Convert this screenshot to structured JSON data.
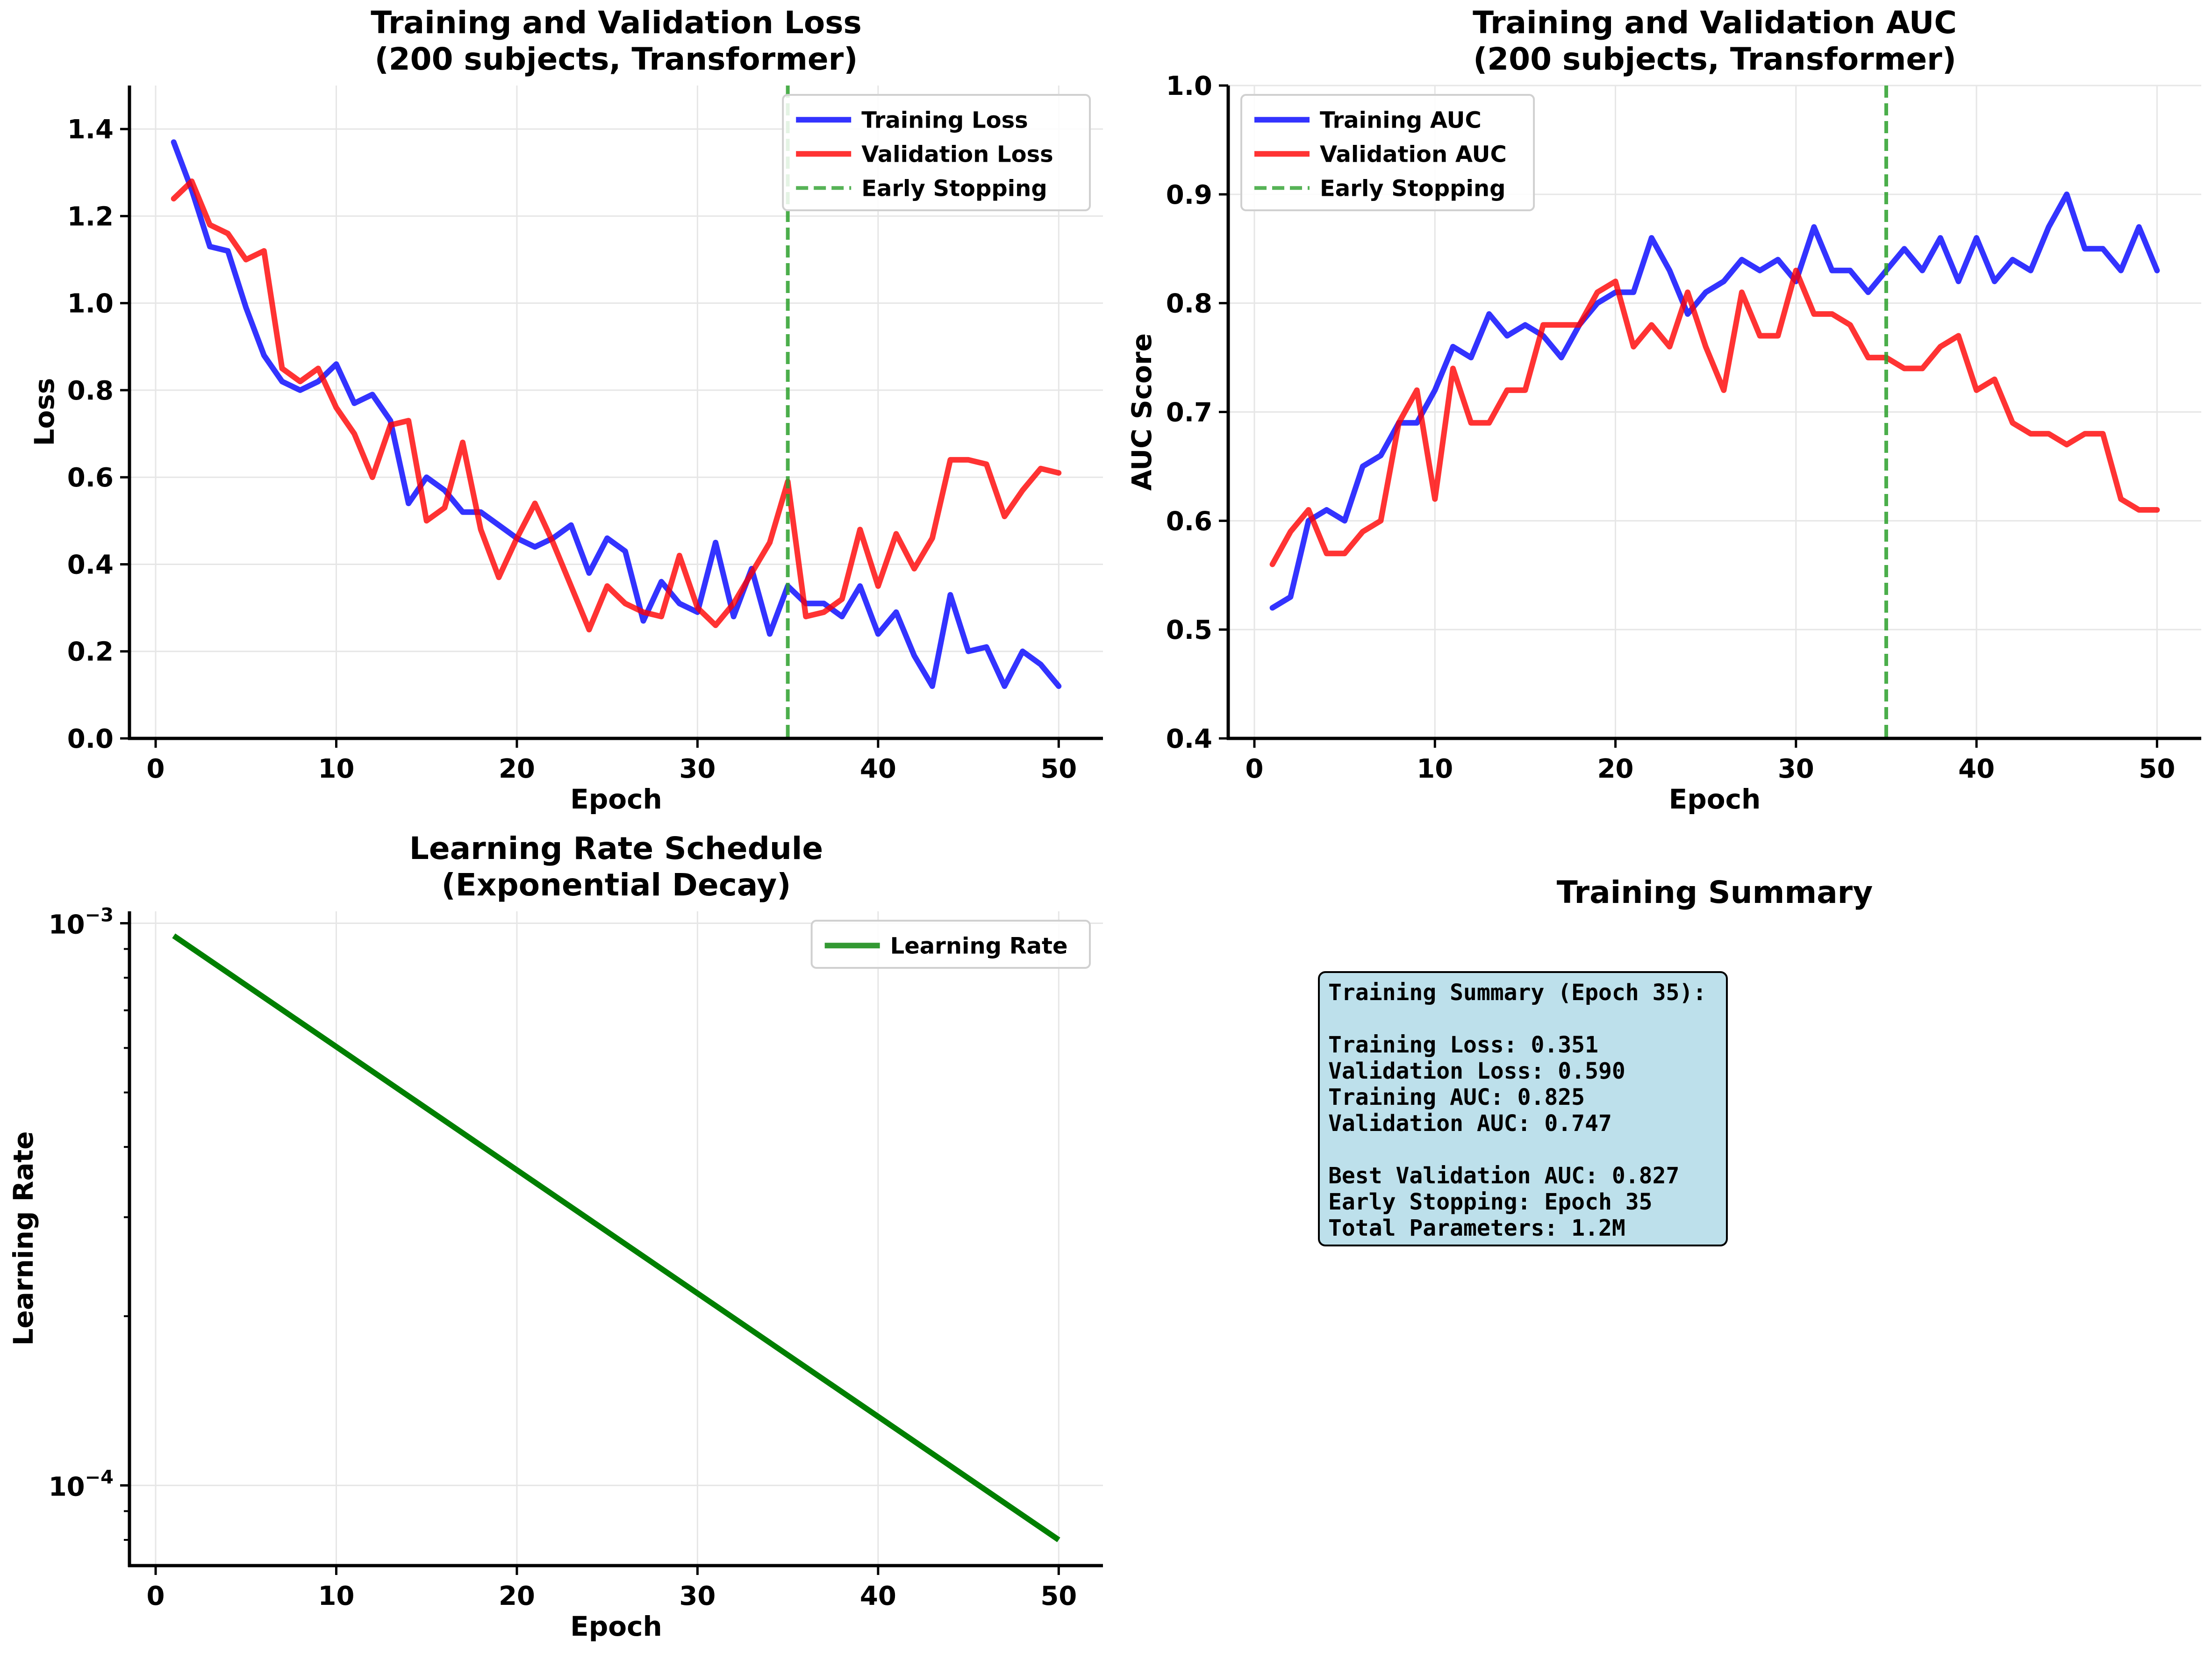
{
  "colors": {
    "train": "#0000ff",
    "val": "#ff0000",
    "early_stop": "#2ca02c",
    "lr": "#007f00",
    "grid": "#e6e6e6",
    "summary_box": "#add8e6"
  },
  "chart_data": [
    {
      "id": "loss",
      "type": "line",
      "title": "Training and Validation Loss\n(200 subjects, Transformer)",
      "xlabel": "Epoch",
      "ylabel": "Loss",
      "xlim": [
        -1.45,
        52.45
      ],
      "ylim": [
        0,
        1.5
      ],
      "xticks": [
        0,
        10,
        20,
        30,
        40,
        50
      ],
      "yticks": [
        0.0,
        0.2,
        0.4,
        0.6,
        0.8,
        1.0,
        1.2,
        1.4
      ],
      "ytick_labels": [
        "0.0",
        "0.2",
        "0.4",
        "0.6",
        "0.8",
        "1.0",
        "1.2",
        "1.4"
      ],
      "grid": true,
      "legend_position": "upper-right",
      "x": [
        1,
        2,
        3,
        4,
        5,
        6,
        7,
        8,
        9,
        10,
        11,
        12,
        13,
        14,
        15,
        16,
        17,
        18,
        19,
        20,
        21,
        22,
        23,
        24,
        25,
        26,
        27,
        28,
        29,
        30,
        31,
        32,
        33,
        34,
        35,
        36,
        37,
        38,
        39,
        40,
        41,
        42,
        43,
        44,
        45,
        46,
        47,
        48,
        49,
        50
      ],
      "series": [
        {
          "name": "Training Loss",
          "color_key": "train",
          "values": [
            1.37,
            1.26,
            1.13,
            1.12,
            0.99,
            0.88,
            0.82,
            0.8,
            0.82,
            0.86,
            0.77,
            0.79,
            0.73,
            0.54,
            0.6,
            0.57,
            0.52,
            0.52,
            0.49,
            0.46,
            0.44,
            0.46,
            0.49,
            0.38,
            0.46,
            0.43,
            0.27,
            0.36,
            0.31,
            0.29,
            0.45,
            0.28,
            0.39,
            0.24,
            0.35,
            0.31,
            0.31,
            0.28,
            0.35,
            0.24,
            0.29,
            0.19,
            0.12,
            0.33,
            0.2,
            0.21,
            0.12,
            0.2,
            0.17,
            0.12
          ]
        },
        {
          "name": "Validation Loss",
          "color_key": "val",
          "values": [
            1.24,
            1.28,
            1.18,
            1.16,
            1.1,
            1.12,
            0.85,
            0.82,
            0.85,
            0.76,
            0.7,
            0.6,
            0.72,
            0.73,
            0.5,
            0.53,
            0.68,
            0.48,
            0.37,
            0.46,
            0.54,
            0.45,
            0.35,
            0.25,
            0.35,
            0.31,
            0.29,
            0.28,
            0.42,
            0.3,
            0.26,
            0.31,
            0.38,
            0.45,
            0.59,
            0.28,
            0.29,
            0.32,
            0.48,
            0.35,
            0.47,
            0.39,
            0.46,
            0.64,
            0.64,
            0.63,
            0.51,
            0.57,
            0.62,
            0.61
          ]
        }
      ],
      "vline": {
        "name": "Early Stopping",
        "x": 35,
        "color_key": "early_stop"
      }
    },
    {
      "id": "auc",
      "type": "line",
      "title": "Training and Validation AUC\n(200 subjects, Transformer)",
      "xlabel": "Epoch",
      "ylabel": "AUC Score",
      "xlim": [
        -1.45,
        52.45
      ],
      "ylim": [
        0.4,
        1.0
      ],
      "xticks": [
        0,
        10,
        20,
        30,
        40,
        50
      ],
      "yticks": [
        0.4,
        0.5,
        0.6,
        0.7,
        0.8,
        0.9,
        1.0
      ],
      "ytick_labels": [
        "0.4",
        "0.5",
        "0.6",
        "0.7",
        "0.8",
        "0.9",
        "1.0"
      ],
      "grid": true,
      "legend_position": "upper-left",
      "x": [
        1,
        2,
        3,
        4,
        5,
        6,
        7,
        8,
        9,
        10,
        11,
        12,
        13,
        14,
        15,
        16,
        17,
        18,
        19,
        20,
        21,
        22,
        23,
        24,
        25,
        26,
        27,
        28,
        29,
        30,
        31,
        32,
        33,
        34,
        35,
        36,
        37,
        38,
        39,
        40,
        41,
        42,
        43,
        44,
        45,
        46,
        47,
        48,
        49,
        50
      ],
      "series": [
        {
          "name": "Training AUC",
          "color_key": "train",
          "values": [
            0.52,
            0.53,
            0.6,
            0.61,
            0.6,
            0.65,
            0.66,
            0.69,
            0.69,
            0.72,
            0.76,
            0.75,
            0.79,
            0.77,
            0.78,
            0.77,
            0.75,
            0.78,
            0.8,
            0.81,
            0.81,
            0.86,
            0.83,
            0.79,
            0.81,
            0.82,
            0.84,
            0.83,
            0.84,
            0.82,
            0.87,
            0.83,
            0.83,
            0.81,
            0.83,
            0.85,
            0.83,
            0.86,
            0.82,
            0.86,
            0.82,
            0.84,
            0.83,
            0.87,
            0.9,
            0.85,
            0.85,
            0.83,
            0.87,
            0.83
          ]
        },
        {
          "name": "Validation AUC",
          "color_key": "val",
          "values": [
            0.56,
            0.59,
            0.61,
            0.57,
            0.57,
            0.59,
            0.6,
            0.69,
            0.72,
            0.62,
            0.74,
            0.69,
            0.69,
            0.72,
            0.72,
            0.78,
            0.78,
            0.78,
            0.81,
            0.82,
            0.76,
            0.78,
            0.76,
            0.81,
            0.76,
            0.72,
            0.81,
            0.77,
            0.77,
            0.83,
            0.79,
            0.79,
            0.78,
            0.75,
            0.75,
            0.74,
            0.74,
            0.76,
            0.77,
            0.72,
            0.73,
            0.69,
            0.68,
            0.68,
            0.67,
            0.68,
            0.68,
            0.62,
            0.61,
            0.61
          ]
        }
      ],
      "vline": {
        "name": "Early Stopping",
        "x": 35,
        "color_key": "early_stop"
      }
    },
    {
      "id": "lr",
      "type": "line",
      "yscale": "log",
      "title": "Learning Rate Schedule\n(Exponential Decay)",
      "xlabel": "Epoch",
      "ylabel": "Learning Rate",
      "xlim": [
        -1.45,
        52.45
      ],
      "ylim": [
        7.2e-05,
        0.00105
      ],
      "xticks": [
        0,
        10,
        20,
        30,
        40,
        50
      ],
      "yticks": [
        0.001,
        0.0001
      ],
      "ytick_labels": [
        {
          "base": "10",
          "exp": "−3"
        },
        {
          "base": "10",
          "exp": "−4"
        }
      ],
      "grid": true,
      "legend_position": "upper-right",
      "series": [
        {
          "name": "Learning Rate",
          "color_key": "lr",
          "start_x": 1,
          "end_x": 50,
          "start_value": 0.00095,
          "end_value": 8e-05
        }
      ]
    }
  ],
  "summary_panel": {
    "title": "Training Summary",
    "lines": [
      "Training Summary (Epoch 35):",
      "",
      "Training Loss: 0.351",
      "Validation Loss: 0.590",
      "Training AUC: 0.825",
      "Validation AUC: 0.747",
      "",
      "Best Validation AUC: 0.827",
      "Early Stopping: Epoch 35",
      "Total Parameters: 1.2M"
    ]
  }
}
